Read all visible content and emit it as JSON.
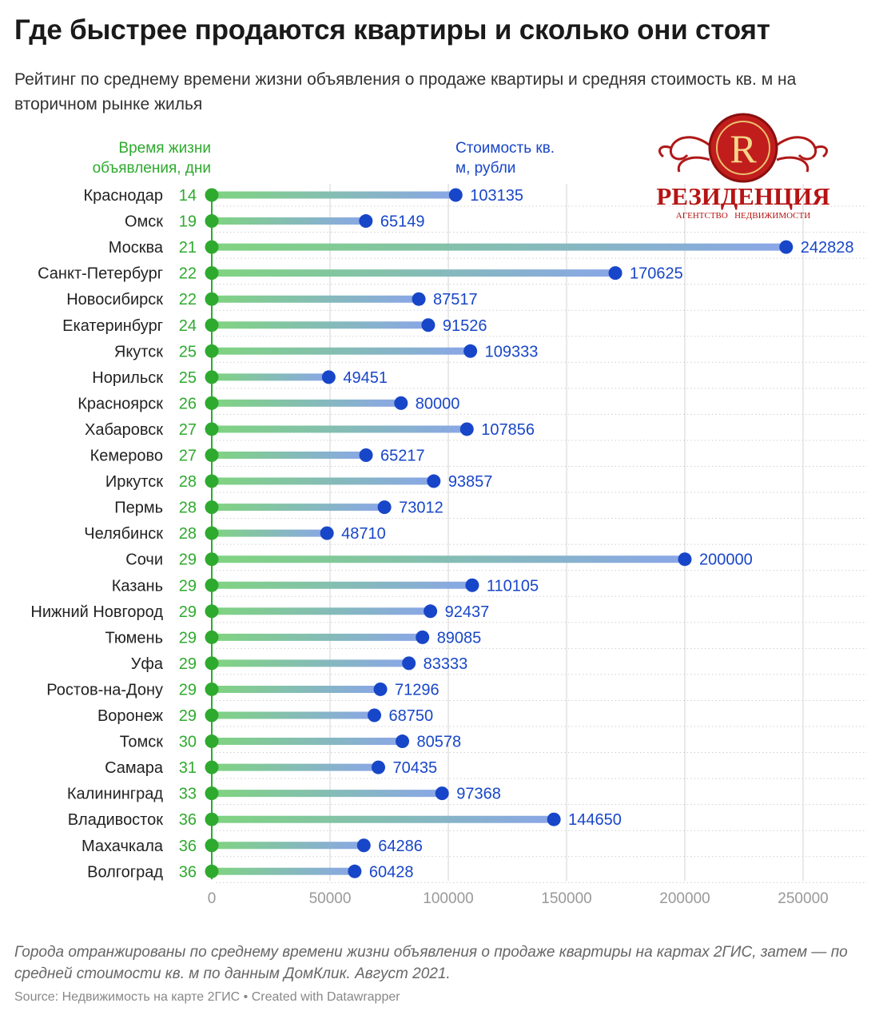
{
  "title": "Где быстрее продаются квартиры и сколько они стоят",
  "subtitle": "Рейтинг по среднему времени жизни объявления о продаже квартиры и средняя стоимость кв. м на вторичном рынке жилья",
  "note": "Города отранжированы по среднему времени жизни объявления о продаже квартиры на картах 2ГИС, затем — по средней стоимости кв. м по данным ДомКлик. Август 2021.",
  "source": {
    "label": "Source: Недвижимость на карте 2ГИС",
    "separator": " • ",
    "created": "Created with Datawrapper"
  },
  "logo": {
    "letter": "R",
    "name": "РЕЗИДЕНЦИЯ",
    "tagline": "АГЕНТСТВО   НЕДВИЖИМОСТИ"
  },
  "colors": {
    "days": "#2eaa2e",
    "price": "#1846c8",
    "bar_start": "#7fd47f",
    "bar_end": "#8aa6e8",
    "axis_text": "#999999",
    "grid": "#dddddd"
  },
  "chart_data": {
    "type": "dot-range",
    "days_label": "Время жизни объявления, дни",
    "price_label": "Стоимость кв. м, рубли",
    "x_ticks": [
      0,
      50000,
      100000,
      150000,
      200000,
      250000
    ],
    "xlim": [
      0,
      270000
    ],
    "grid": true,
    "rows": [
      {
        "city": "Краснодар",
        "days": 14,
        "price": 103135
      },
      {
        "city": "Омск",
        "days": 19,
        "price": 65149
      },
      {
        "city": "Москва",
        "days": 21,
        "price": 242828
      },
      {
        "city": "Санкт-Петербург",
        "days": 22,
        "price": 170625
      },
      {
        "city": "Новосибирск",
        "days": 22,
        "price": 87517
      },
      {
        "city": "Екатеринбург",
        "days": 24,
        "price": 91526
      },
      {
        "city": "Якутск",
        "days": 25,
        "price": 109333
      },
      {
        "city": "Норильск",
        "days": 25,
        "price": 49451
      },
      {
        "city": "Красноярск",
        "days": 26,
        "price": 80000
      },
      {
        "city": "Хабаровск",
        "days": 27,
        "price": 107856
      },
      {
        "city": "Кемерово",
        "days": 27,
        "price": 65217
      },
      {
        "city": "Иркутск",
        "days": 28,
        "price": 93857
      },
      {
        "city": "Пермь",
        "days": 28,
        "price": 73012
      },
      {
        "city": "Челябинск",
        "days": 28,
        "price": 48710
      },
      {
        "city": "Сочи",
        "days": 29,
        "price": 200000
      },
      {
        "city": "Казань",
        "days": 29,
        "price": 110105
      },
      {
        "city": "Нижний Новгород",
        "days": 29,
        "price": 92437
      },
      {
        "city": "Тюмень",
        "days": 29,
        "price": 89085
      },
      {
        "city": "Уфа",
        "days": 29,
        "price": 83333
      },
      {
        "city": "Ростов-на-Дону",
        "days": 29,
        "price": 71296
      },
      {
        "city": "Воронеж",
        "days": 29,
        "price": 68750
      },
      {
        "city": "Томск",
        "days": 30,
        "price": 80578
      },
      {
        "city": "Самара",
        "days": 31,
        "price": 70435
      },
      {
        "city": "Калининград",
        "days": 33,
        "price": 97368
      },
      {
        "city": "Владивосток",
        "days": 36,
        "price": 144650
      },
      {
        "city": "Махачкала",
        "days": 36,
        "price": 64286
      },
      {
        "city": "Волгоград",
        "days": 36,
        "price": 60428
      }
    ]
  }
}
